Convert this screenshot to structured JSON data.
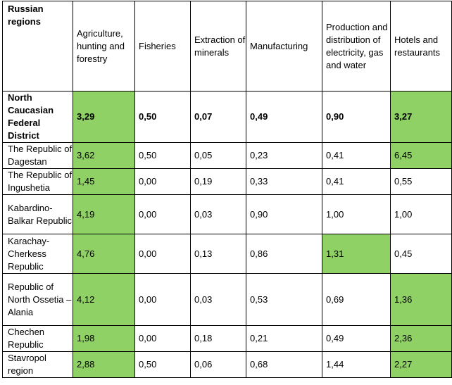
{
  "table": {
    "headers": [
      "Russian regions",
      "Agriculture, hunting and forestry",
      "Fisheries",
      "Extraction of minerals",
      "Manufacturing",
      "Production and distribution of electricity, gas and water",
      "Hotels and restaurants"
    ],
    "rows": [
      {
        "cells": [
          "North Caucasian Federal District",
          "3,29",
          "0,50",
          "0,07",
          "0,49",
          "0,90",
          "3,27"
        ],
        "highlight": [
          false,
          true,
          false,
          false,
          false,
          false,
          true
        ],
        "bold": true
      },
      {
        "cells": [
          "The Republic of Dagestan",
          "3,62",
          "0,50",
          "0,05",
          "0,23",
          "0,41",
          "6,45"
        ],
        "highlight": [
          false,
          true,
          false,
          false,
          false,
          false,
          true
        ],
        "bold": false
      },
      {
        "cells": [
          "The Republic of Ingushetia",
          "1,45",
          "0,00",
          "0,19",
          "0,33",
          "0,41",
          "0,55"
        ],
        "highlight": [
          false,
          true,
          false,
          false,
          false,
          false,
          false
        ],
        "bold": false
      },
      {
        "cells": [
          "Kabardino-Balkar Republic",
          "4,19",
          "0,00",
          "0,03",
          "0,90",
          "1,00",
          "1,00"
        ],
        "highlight": [
          false,
          true,
          false,
          false,
          false,
          false,
          false
        ],
        "bold": false
      },
      {
        "cells": [
          "Karachay-Cherkess Republic",
          "4,76",
          "0,00",
          "0,13",
          "0,86",
          "1,31",
          "0,45"
        ],
        "highlight": [
          false,
          true,
          false,
          false,
          false,
          true,
          false
        ],
        "bold": false
      },
      {
        "cells": [
          "Republic of North Ossetia – Alania",
          "4,12",
          "0,00",
          "0,03",
          "0,53",
          "0,69",
          "1,36"
        ],
        "highlight": [
          false,
          true,
          false,
          false,
          false,
          false,
          true
        ],
        "bold": false
      },
      {
        "cells": [
          "Chechen Republic",
          "1,98",
          "0,00",
          "0,18",
          "0,21",
          "0,49",
          "2,36"
        ],
        "highlight": [
          false,
          true,
          false,
          false,
          false,
          false,
          true
        ],
        "bold": false
      },
      {
        "cells": [
          "Stavropol region",
          "2,88",
          "0,50",
          "0,06",
          "0,68",
          "1,44",
          "2,27"
        ],
        "highlight": [
          false,
          true,
          false,
          false,
          false,
          false,
          true
        ],
        "bold": false
      }
    ],
    "highlight_color": "#8fd165"
  }
}
